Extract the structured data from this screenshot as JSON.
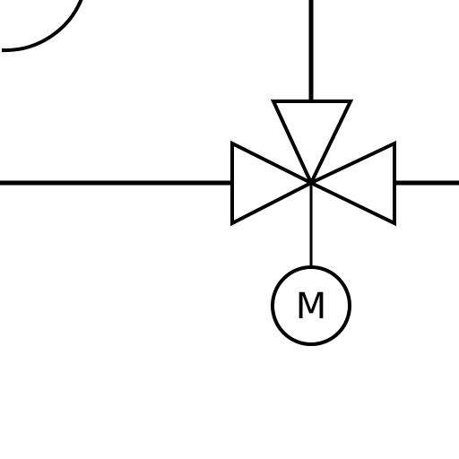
{
  "diagram": {
    "type": "P&ID valve symbol",
    "motor_label": "M",
    "colors": {
      "line": "#000000",
      "background": "#ffffff"
    }
  }
}
